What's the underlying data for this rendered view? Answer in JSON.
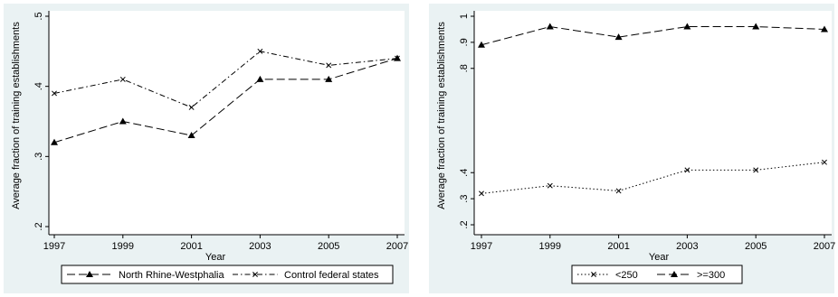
{
  "chart_data": [
    {
      "type": "line",
      "x": [
        1997,
        1999,
        2001,
        2003,
        2005,
        2007
      ],
      "xlabel": "Year",
      "ylabel": "Average fraction of training establishments",
      "ylim": [
        0.2,
        0.5
      ],
      "yticks": [
        ".2",
        ".3",
        ".4",
        ".5"
      ],
      "xticks": [
        "1997",
        "1999",
        "2001",
        "2003",
        "2005",
        "2007"
      ],
      "series": [
        {
          "name": "North Rhine-Westphalia",
          "values": [
            0.32,
            0.35,
            0.33,
            0.41,
            0.41,
            0.44
          ],
          "marker": "triangle",
          "dash": "long-dash"
        },
        {
          "name": "Control federal states",
          "values": [
            0.39,
            0.41,
            0.37,
            0.45,
            0.43,
            0.44
          ],
          "marker": "x",
          "dash": "dash-dot"
        }
      ],
      "legend": "bottom"
    },
    {
      "type": "line",
      "x": [
        1997,
        1999,
        2001,
        2003,
        2005,
        2007
      ],
      "xlabel": "Year",
      "ylabel": "Average fraction of training establishments",
      "ylim": [
        0.2,
        1.0
      ],
      "yticks": [
        ".2",
        ".3",
        ".4",
        ".8",
        ".9",
        "1"
      ],
      "xticks": [
        "1997",
        "1999",
        "2001",
        "2003",
        "2005",
        "2007"
      ],
      "series": [
        {
          "name": "<250",
          "values": [
            0.32,
            0.35,
            0.33,
            0.41,
            0.41,
            0.44
          ],
          "marker": "x",
          "dash": "dotted"
        },
        {
          "name": ">=300",
          "values": [
            0.89,
            0.96,
            0.92,
            0.96,
            0.96,
            0.95
          ],
          "marker": "triangle",
          "dash": "long-dash"
        }
      ],
      "legend": "bottom"
    }
  ]
}
